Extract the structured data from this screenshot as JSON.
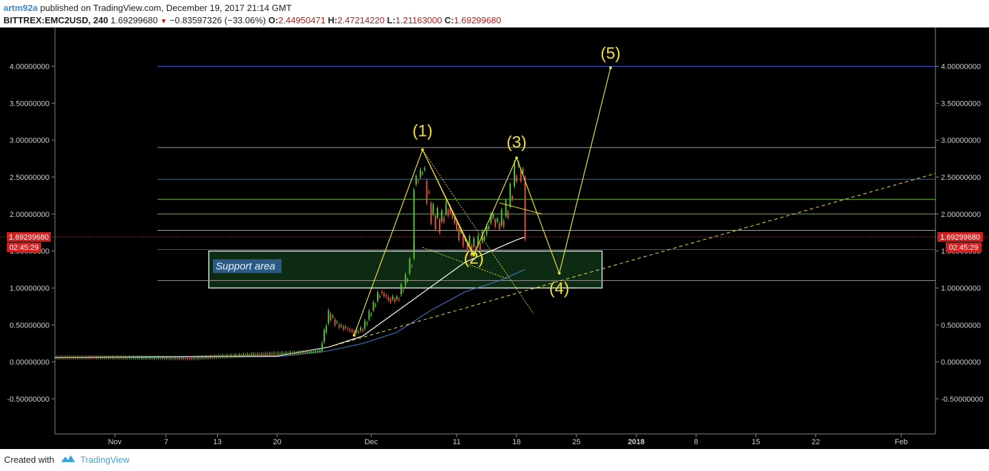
{
  "header": {
    "author": "artm92a",
    "published_text": "published on TradingView.com, December 19, 2017 21:14 GMT",
    "symbol": "BITTREX:EMC2USD, 240",
    "last": "1.69299680",
    "change": "−0.83597326 (−33.06%)",
    "o_label": "O:",
    "o": "2.44950471",
    "h_label": "H:",
    "h": "2.47214220",
    "l_label": "L:",
    "l": "1.21163000",
    "c_label": "C:",
    "c": "1.69299680",
    "down_icon": "triangle-down-icon"
  },
  "footer": {
    "created_with": "Created with",
    "brand": "TradingView",
    "logo_icon": "tradingview-cloud-icon"
  },
  "colors": {
    "up": "#5bc236",
    "down": "#e0533e",
    "wave": "#f0e030",
    "ma_white": "#ffffff",
    "ma_blue": "#3a6fb5",
    "support_fill": "#0d2b12",
    "support_border": "#cfe8e8",
    "price_tag": "#d52020"
  },
  "chart_data": {
    "type": "line",
    "ylim": [
      -0.9,
      4.45
    ],
    "xlim": [
      "2017-10-25",
      "2018-02-05"
    ],
    "grid": false,
    "y_ticks": [
      "4.00000000",
      "3.50000000",
      "3.00000000",
      "2.50000000",
      "2.00000000",
      "1.50000000",
      "1.00000000",
      "0.50000000",
      "0.00000000",
      "-0.50000000"
    ],
    "x_ticks": [
      "Nov",
      "7",
      "13",
      "20",
      "Dec",
      "11",
      "18",
      "25",
      "2018",
      "8",
      "15",
      "22",
      "Feb"
    ],
    "x_tick_dates": [
      "2017-11-01",
      "2017-11-07",
      "2017-11-13",
      "2017-11-20",
      "2017-12-01",
      "2017-12-11",
      "2017-12-18",
      "2017-12-25",
      "2018-01-01",
      "2018-01-08",
      "2018-01-15",
      "2018-01-22",
      "2018-02-01"
    ],
    "last_price_label": "1.69299680",
    "countdown_label": "02:45:29",
    "support_label": "Support area",
    "support_zone": {
      "y": [
        1.0,
        1.5
      ],
      "x": [
        "2017-11-12",
        "2017-12-28"
      ]
    },
    "horizontal_levels": [
      {
        "y": 4.0,
        "color": "#3a5cc8"
      },
      {
        "y": 2.9,
        "color": "#9a9a9a"
      },
      {
        "y": 2.47,
        "color": "#3a6fb5"
      },
      {
        "y": 2.2,
        "color": "#5bc236"
      },
      {
        "y": 2.0,
        "color": "#5bc236"
      },
      {
        "y": 1.78,
        "color": "#a8c030"
      },
      {
        "y": 1.69,
        "color": "#d52020"
      },
      {
        "y": 1.52,
        "color": "#d52020"
      },
      {
        "y": 1.1,
        "color": "#9a9a9a"
      }
    ],
    "wave_labels": [
      {
        "text": "(1)",
        "x": "2017-12-07",
        "y": 3.05
      },
      {
        "text": "(2)",
        "x": "2017-12-13",
        "y": 1.33
      },
      {
        "text": "(3)",
        "x": "2017-12-18",
        "y": 2.9
      },
      {
        "text": "(4)",
        "x": "2017-12-23",
        "y": 0.92
      },
      {
        "text": "(5)",
        "x": "2017-12-29",
        "y": 4.1
      }
    ],
    "wave_path": [
      {
        "x": "2017-11-29",
        "y": 0.36
      },
      {
        "x": "2017-12-07",
        "y": 2.87
      },
      {
        "x": "2017-12-13",
        "y": 1.45
      },
      {
        "x": "2017-12-18",
        "y": 2.76
      },
      {
        "x": "2017-12-23",
        "y": 1.2
      },
      {
        "x": "2017-12-29",
        "y": 3.98
      }
    ],
    "trendline_dashed": [
      {
        "x": "2017-11-26",
        "y": 0.2
      },
      {
        "x": "2018-02-05",
        "y": 2.55
      }
    ],
    "fib_dotted": [
      {
        "x": "2017-12-07",
        "y": 2.87
      },
      {
        "x": "2017-12-20",
        "y": 0.65
      }
    ],
    "fib_dotted_2": [
      {
        "x": "2017-12-07",
        "y": 1.55
      },
      {
        "x": "2017-12-17",
        "y": 1.12
      }
    ],
    "fan_lines": [
      [
        {
          "x": "2017-12-07",
          "y": 2.87
        },
        {
          "x": "2017-12-13",
          "y": 1.42
        }
      ],
      [
        {
          "x": "2017-12-16",
          "y": 2.15
        },
        {
          "x": "2017-12-21",
          "y": 2.0
        }
      ]
    ],
    "price_series": {
      "name": "EMC2USD",
      "x": [
        "2017-10-25",
        "2017-11-01",
        "2017-11-10",
        "2017-11-17",
        "2017-11-22",
        "2017-11-25",
        "2017-11-26",
        "2017-11-27",
        "2017-11-28",
        "2017-11-29",
        "2017-11-30",
        "2017-12-01",
        "2017-12-02",
        "2017-12-03",
        "2017-12-04",
        "2017-12-05",
        "2017-12-06",
        "2017-12-06",
        "2017-12-07",
        "2017-12-08",
        "2017-12-09",
        "2017-12-10",
        "2017-12-11",
        "2017-12-12",
        "2017-12-13",
        "2017-12-14",
        "2017-12-15",
        "2017-12-16",
        "2017-12-17",
        "2017-12-18",
        "2017-12-19",
        "2017-12-19"
      ],
      "values": [
        0.06,
        0.06,
        0.05,
        0.1,
        0.12,
        0.15,
        0.65,
        0.5,
        0.45,
        0.4,
        0.45,
        0.7,
        0.95,
        0.85,
        0.85,
        1.1,
        1.5,
        2.4,
        2.6,
        2.0,
        1.9,
        2.1,
        1.8,
        1.6,
        1.55,
        1.65,
        1.95,
        1.85,
        2.1,
        2.65,
        2.45,
        1.69
      ]
    },
    "ma_white": {
      "x": [
        "2017-10-25",
        "2017-11-20",
        "2017-11-26",
        "2017-11-30",
        "2017-12-03",
        "2017-12-06",
        "2017-12-09",
        "2017-12-12",
        "2017-12-15",
        "2017-12-18",
        "2017-12-19"
      ],
      "values": [
        0.06,
        0.08,
        0.2,
        0.35,
        0.6,
        0.85,
        1.1,
        1.35,
        1.5,
        1.65,
        1.69
      ]
    },
    "ma_blue": {
      "x": [
        "2017-10-25",
        "2017-11-20",
        "2017-11-26",
        "2017-11-30",
        "2017-12-04",
        "2017-12-08",
        "2017-12-12",
        "2017-12-16",
        "2017-12-19"
      ],
      "values": [
        0.06,
        0.07,
        0.15,
        0.25,
        0.4,
        0.7,
        0.95,
        1.1,
        1.25
      ]
    }
  }
}
